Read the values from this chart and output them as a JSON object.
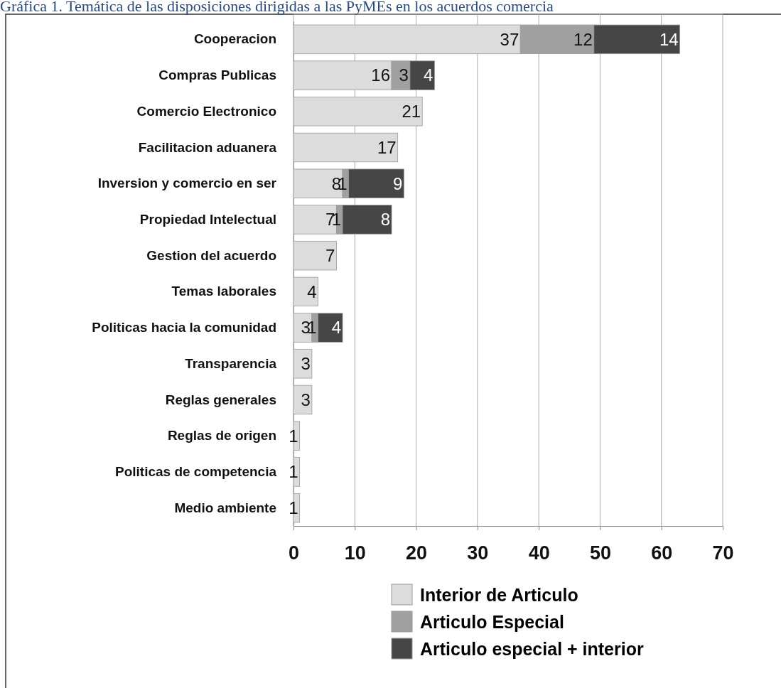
{
  "chart_data": {
    "type": "bar",
    "orientation": "horizontal",
    "stacked": true,
    "title": "Gráfica 1. Temática de las disposiciones dirigidas a las PyMEs en los acuerdos comercia",
    "categories": [
      "Cooperacion",
      "Compras Publicas",
      "Comercio Electronico",
      "Facilitacion aduanera",
      "Inversion y comercio en ser",
      "Propiedad Intelectual",
      "Gestion del acuerdo",
      "Temas laborales",
      "Politicas hacia la comunidad",
      "Transparencia",
      "Reglas generales",
      "Reglas de origen",
      "Politicas de competencia",
      "Medio ambiente"
    ],
    "series": [
      {
        "name": "Interior de Articulo",
        "color": "#dcdcdc",
        "values": [
          37,
          16,
          21,
          17,
          8,
          7,
          7,
          4,
          3,
          3,
          3,
          1,
          1,
          1
        ]
      },
      {
        "name": "Articulo Especial",
        "color": "#a0a0a0",
        "values": [
          12,
          3,
          null,
          null,
          1,
          1,
          null,
          null,
          1,
          null,
          null,
          null,
          null,
          null
        ]
      },
      {
        "name": "Articulo especial + interior",
        "color": "#464646",
        "values": [
          14,
          4,
          null,
          null,
          9,
          8,
          null,
          null,
          4,
          null,
          null,
          null,
          null,
          null
        ]
      }
    ],
    "xlim": [
      0,
      70
    ],
    "xticks": [
      0,
      10,
      20,
      30,
      40,
      50,
      60,
      70
    ],
    "grid": "x",
    "legend": "bottom",
    "data_labels": true
  }
}
